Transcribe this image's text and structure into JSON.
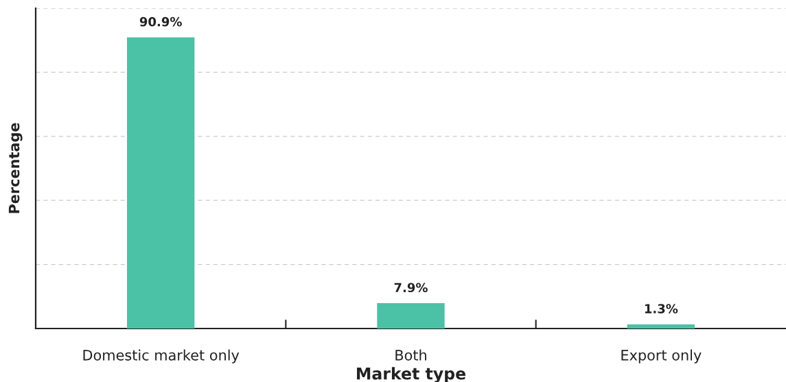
{
  "chart_data": {
    "type": "bar",
    "xlabel": "Market type",
    "ylabel": "Percentage",
    "categories": [
      "Domestic market only",
      "Both",
      "Export only"
    ],
    "values": [
      90.9,
      7.9,
      1.3
    ],
    "value_labels": [
      "90.9%",
      "7.9%",
      "1.3%"
    ],
    "color": "#4bc1a6",
    "ylim": [
      0,
      100
    ],
    "yticks": [
      {
        "value": 0,
        "label": null
      },
      {
        "value": 20,
        "label": null
      },
      {
        "value": 40,
        "label": null
      },
      {
        "value": 60,
        "label": null
      },
      {
        "value": 80,
        "label": null
      },
      {
        "value": 100,
        "label": null
      }
    ],
    "tick_labels": "x",
    "grid": "y",
    "legend": false
  }
}
